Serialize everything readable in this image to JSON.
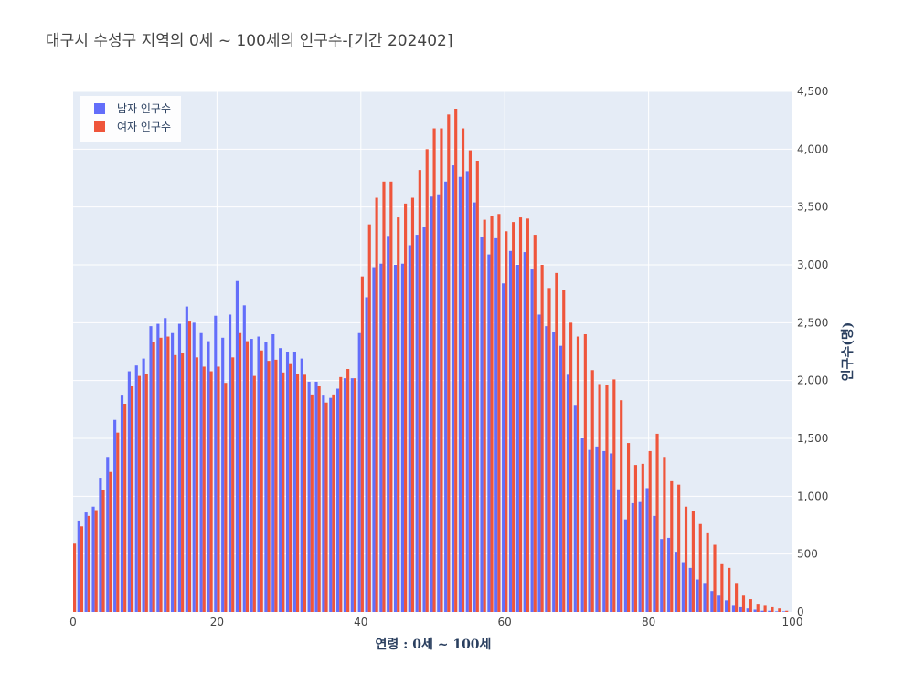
{
  "chart_data": {
    "type": "bar",
    "title": "대구시 수성구 지역의 0세 ~ 100세의 인구수-[기간 202402]",
    "xlabel": "연령 : 0세 ~ 100세",
    "ylabel": "인구수(명)",
    "xlim": [
      0,
      100
    ],
    "ylim": [
      0,
      4500
    ],
    "x_ticks": [
      0,
      20,
      40,
      60,
      80,
      100
    ],
    "y_ticks": [
      0,
      500,
      1000,
      1500,
      2000,
      2500,
      3000,
      3500,
      4000,
      4500
    ],
    "y_tick_labels": [
      "0",
      "500",
      "1,000",
      "1,500",
      "2,000",
      "2,500",
      "3,000",
      "3,500",
      "4,000",
      "4,500"
    ],
    "y_axis_side": "right",
    "legend_position": "top-left",
    "plot_background": "#e5ecf6",
    "x": [
      0,
      1,
      2,
      3,
      4,
      5,
      6,
      7,
      8,
      9,
      10,
      11,
      12,
      13,
      14,
      15,
      16,
      17,
      18,
      19,
      20,
      21,
      22,
      23,
      24,
      25,
      26,
      27,
      28,
      29,
      30,
      31,
      32,
      33,
      34,
      35,
      36,
      37,
      38,
      39,
      40,
      41,
      42,
      43,
      44,
      45,
      46,
      47,
      48,
      49,
      50,
      51,
      52,
      53,
      54,
      55,
      56,
      57,
      58,
      59,
      60,
      61,
      62,
      63,
      64,
      65,
      66,
      67,
      68,
      69,
      70,
      71,
      72,
      73,
      74,
      75,
      76,
      77,
      78,
      79,
      80,
      81,
      82,
      83,
      84,
      85,
      86,
      87,
      88,
      89,
      90,
      91,
      92,
      93,
      94,
      95,
      96,
      97,
      98,
      99,
      100
    ],
    "series": [
      {
        "name": "남자 인구수",
        "color": "#636efa",
        "values": [
          600,
          790,
          860,
          910,
          1160,
          1340,
          1660,
          1870,
          2080,
          2130,
          2190,
          2470,
          2490,
          2540,
          2410,
          2490,
          2640,
          2500,
          2410,
          2340,
          2560,
          2370,
          2570,
          2860,
          2650,
          2360,
          2380,
          2330,
          2400,
          2280,
          2250,
          2250,
          2190,
          1990,
          1990,
          1870,
          1850,
          1930,
          2020,
          2020,
          2410,
          2720,
          2980,
          3010,
          3250,
          3000,
          3010,
          3170,
          3260,
          3330,
          3590,
          3610,
          3720,
          3860,
          3760,
          3810,
          3540,
          3240,
          3090,
          3230,
          2840,
          3120,
          3000,
          3110,
          2960,
          2570,
          2470,
          2420,
          2300,
          2050,
          1790,
          1500,
          1400,
          1430,
          1390,
          1370,
          1060,
          800,
          940,
          950,
          1070,
          830,
          630,
          640,
          520,
          430,
          380,
          280,
          250,
          180,
          140,
          100,
          60,
          40,
          30,
          20,
          10,
          10,
          5,
          5,
          0
        ]
      },
      {
        "name": "여자 인구수",
        "color": "#ef553b",
        "values": [
          590,
          740,
          830,
          880,
          1050,
          1210,
          1550,
          1800,
          1950,
          2040,
          2060,
          2330,
          2370,
          2380,
          2220,
          2240,
          2510,
          2200,
          2120,
          2080,
          2120,
          1980,
          2200,
          2410,
          2340,
          2040,
          2260,
          2170,
          2180,
          2070,
          2150,
          2060,
          2050,
          1880,
          1950,
          1810,
          1880,
          2030,
          2100,
          2020,
          2900,
          3350,
          3580,
          3720,
          3720,
          3410,
          3530,
          3580,
          3820,
          4000,
          4180,
          4180,
          4300,
          4350,
          4180,
          3990,
          3900,
          3390,
          3420,
          3440,
          3290,
          3370,
          3410,
          3400,
          3260,
          3000,
          2800,
          2930,
          2780,
          2500,
          2380,
          2400,
          2090,
          1970,
          1960,
          2010,
          1830,
          1460,
          1270,
          1280,
          1390,
          1540,
          1340,
          1130,
          1100,
          910,
          870,
          760,
          680,
          580,
          420,
          380,
          250,
          140,
          110,
          70,
          60,
          40,
          30,
          10,
          25
        ]
      }
    ]
  }
}
